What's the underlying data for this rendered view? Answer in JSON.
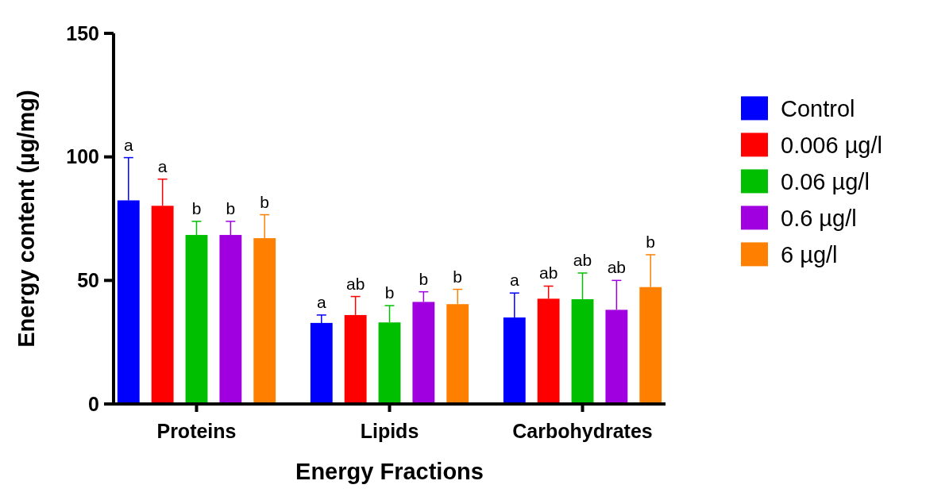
{
  "chart_data": {
    "type": "bar",
    "xlabel": "Energy Fractions",
    "ylabel": "Energy content (µg/mg)",
    "categories": [
      "Proteins",
      "Lipids",
      "Carbohydrates"
    ],
    "ylim": [
      0,
      150
    ],
    "yticks": [
      0,
      50,
      100,
      150
    ],
    "legend": "right",
    "series": [
      {
        "name": "Control",
        "color": "#0000ff",
        "values": [
          82.4,
          32.8,
          35
        ],
        "errors": [
          17.3,
          3.2,
          9.9
        ],
        "value_labels": [
          "a",
          "a",
          "a"
        ]
      },
      {
        "name": "0.006 µg/l",
        "color": "#ff0000",
        "values": [
          80.2,
          36,
          42.6
        ],
        "errors": [
          10.8,
          7.5,
          5.1
        ],
        "value_labels": [
          "a",
          "ab",
          "ab"
        ]
      },
      {
        "name": "0.06 µg/l",
        "color": "#00bf00",
        "values": [
          68.4,
          33,
          42.4
        ],
        "errors": [
          5.5,
          6.8,
          10.6
        ],
        "value_labels": [
          "b",
          "b",
          "ab"
        ]
      },
      {
        "name": "0.6 µg/l",
        "color": "#a000e0",
        "values": [
          68.4,
          41.3,
          38.1
        ],
        "errors": [
          5.5,
          4.1,
          11.9
        ],
        "value_labels": [
          "b",
          "b",
          "ab"
        ]
      },
      {
        "name": "6 µg/l",
        "color": "#ff8000",
        "values": [
          67.1,
          40.4,
          47.3
        ],
        "errors": [
          9.5,
          6,
          13.1
        ],
        "value_labels": [
          "b",
          "b",
          "b"
        ]
      }
    ]
  }
}
